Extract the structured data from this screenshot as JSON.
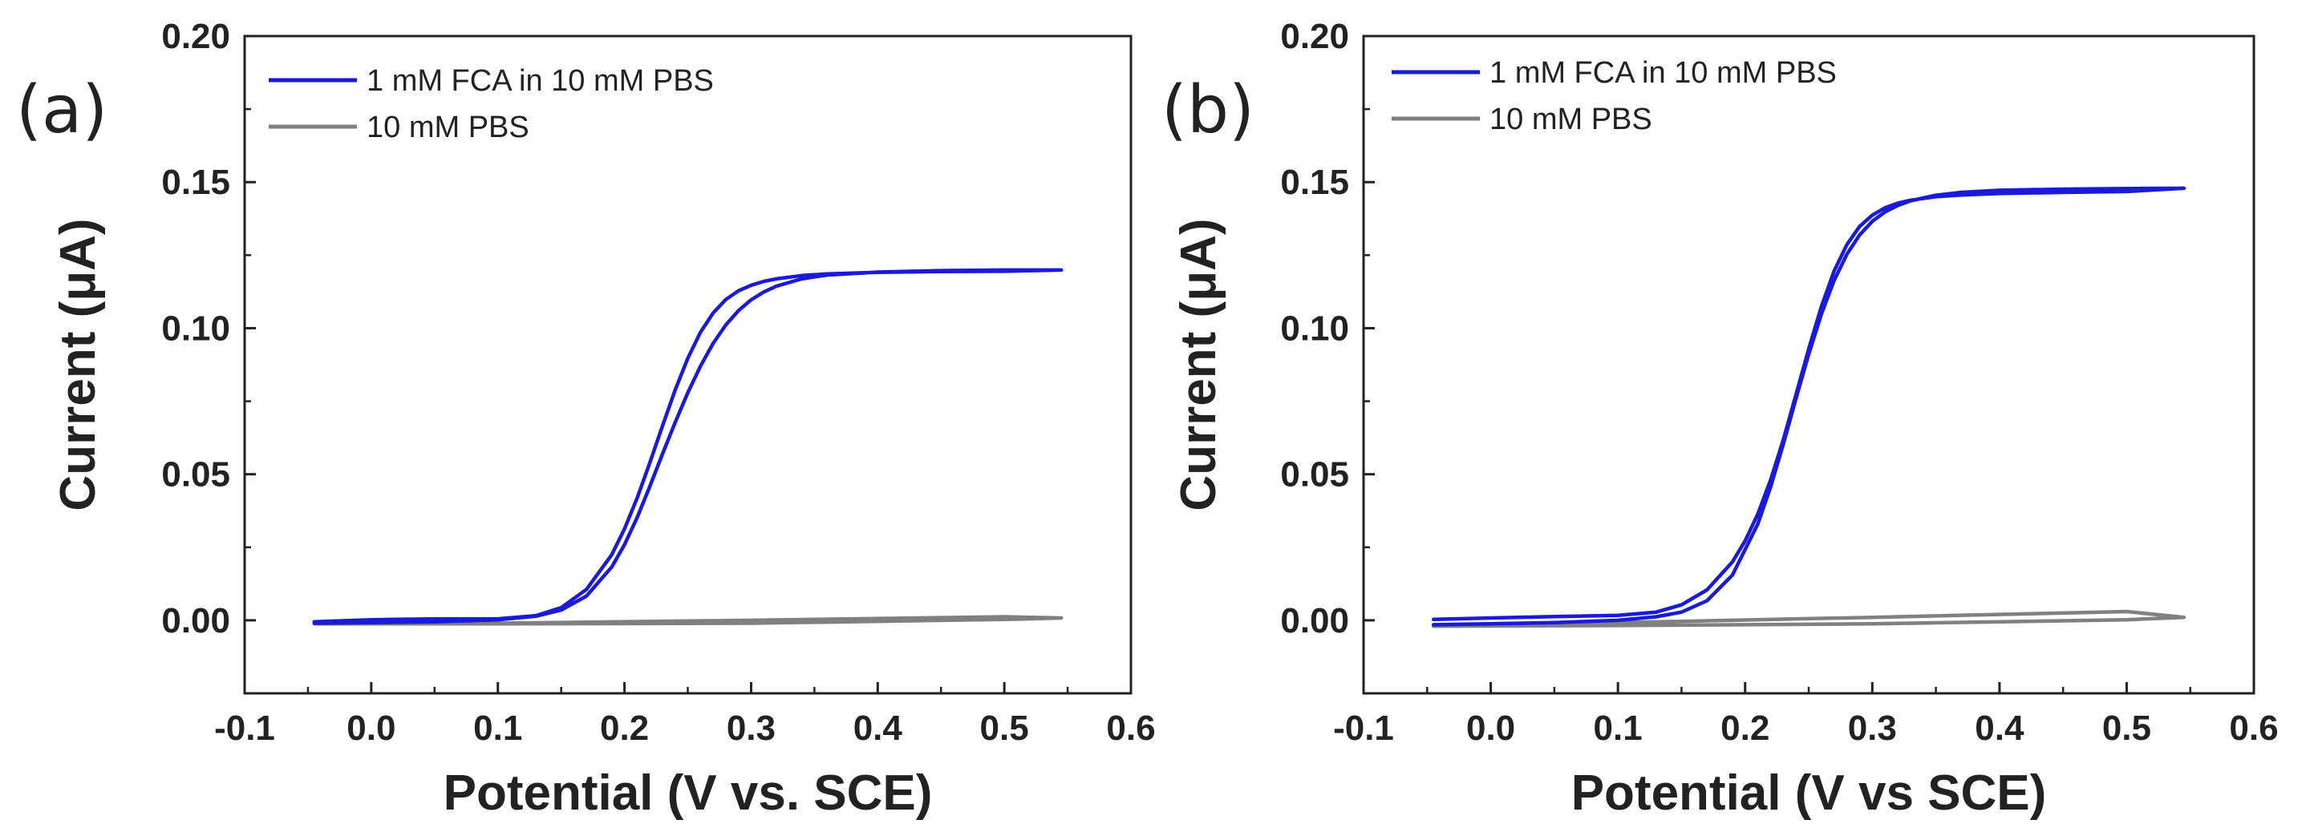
{
  "chart_data": [
    {
      "type": "line",
      "panel_label": "(a)",
      "xlabel": "Potential (V vs. SCE)",
      "ylabel": "Current (μA)",
      "xlim": [
        -0.1,
        0.6
      ],
      "ylim": [
        -0.025,
        0.2
      ],
      "xticks": [
        "-0.1",
        "0.0",
        "0.1",
        "0.2",
        "0.3",
        "0.4",
        "0.5",
        "0.6"
      ],
      "yticks": [
        "0.00",
        "0.05",
        "0.10",
        "0.15",
        "0.20"
      ],
      "grid": false,
      "legend_position": "top-left",
      "series": [
        {
          "name": "1 mM FCA in 10 mM PBS",
          "color": "#1a1adb",
          "x": [
            -0.045,
            0.0,
            0.05,
            0.1,
            0.13,
            0.15,
            0.17,
            0.19,
            0.2,
            0.21,
            0.22,
            0.23,
            0.24,
            0.25,
            0.26,
            0.27,
            0.28,
            0.29,
            0.3,
            0.31,
            0.32,
            0.34,
            0.36,
            0.4,
            0.45,
            0.5,
            0.545,
            0.5,
            0.45,
            0.4,
            0.36,
            0.34,
            0.32,
            0.31,
            0.3,
            0.29,
            0.28,
            0.27,
            0.26,
            0.25,
            0.24,
            0.23,
            0.22,
            0.21,
            0.2,
            0.19,
            0.17,
            0.15,
            0.13,
            0.1,
            0.05,
            0.0,
            -0.045
          ],
          "y": [
            -0.001,
            -0.0008,
            -0.0005,
            0.0002,
            0.0014,
            0.0035,
            0.0083,
            0.0183,
            0.0259,
            0.0352,
            0.0458,
            0.0569,
            0.0677,
            0.0779,
            0.087,
            0.0948,
            0.1011,
            0.106,
            0.1097,
            0.1124,
            0.1144,
            0.1169,
            0.1182,
            0.1192,
            0.1197,
            0.1199,
            0.1199,
            0.1195,
            0.1194,
            0.1191,
            0.1186,
            0.118,
            0.1169,
            0.116,
            0.1147,
            0.1128,
            0.1098,
            0.1052,
            0.0986,
            0.0897,
            0.0788,
            0.0665,
            0.0539,
            0.0419,
            0.0313,
            0.0225,
            0.0106,
            0.0043,
            0.0016,
            0.0005,
            0.0005,
            0.0002,
            -0.0005
          ]
        },
        {
          "name": "10 mM PBS",
          "color": "#808080",
          "x": [
            -0.045,
            0.1,
            0.3,
            0.5,
            0.545,
            0.5,
            0.3,
            0.1,
            -0.045
          ],
          "y": [
            -0.0012,
            -0.0012,
            -0.001,
            0.0003,
            0.0008,
            0.0012,
            0.0,
            -0.001,
            -0.0012
          ]
        }
      ]
    },
    {
      "type": "line",
      "panel_label": "(b)",
      "xlabel": "Potential (V vs SCE)",
      "ylabel": "Current (μA)",
      "xlim": [
        -0.1,
        0.6
      ],
      "ylim": [
        -0.025,
        0.2
      ],
      "xticks": [
        "-0.1",
        "0.0",
        "0.1",
        "0.2",
        "0.3",
        "0.4",
        "0.5",
        "0.6"
      ],
      "yticks": [
        "0.00",
        "0.05",
        "0.10",
        "0.15",
        "0.20"
      ],
      "grid": false,
      "legend_position": "top-left",
      "series": [
        {
          "name": "1 mM FCA in 10 mM PBS",
          "color": "#1a1adb",
          "x": [
            -0.045,
            0.0,
            0.05,
            0.1,
            0.13,
            0.15,
            0.17,
            0.19,
            0.21,
            0.22,
            0.23,
            0.24,
            0.25,
            0.26,
            0.27,
            0.28,
            0.29,
            0.3,
            0.31,
            0.32,
            0.33,
            0.35,
            0.37,
            0.4,
            0.45,
            0.5,
            0.545,
            0.5,
            0.45,
            0.4,
            0.37,
            0.35,
            0.33,
            0.32,
            0.31,
            0.3,
            0.29,
            0.28,
            0.27,
            0.26,
            0.25,
            0.24,
            0.23,
            0.22,
            0.21,
            0.2,
            0.19,
            0.17,
            0.15,
            0.13,
            0.1,
            0.05,
            0.0,
            -0.045
          ],
          "y": [
            -0.0015,
            -0.0012,
            -0.0008,
            0.0,
            0.0012,
            0.0028,
            0.0067,
            0.0155,
            0.033,
            0.0456,
            0.0603,
            0.0759,
            0.0911,
            0.1049,
            0.1164,
            0.1253,
            0.1319,
            0.1366,
            0.1398,
            0.142,
            0.1436,
            0.1455,
            0.1465,
            0.1472,
            0.1476,
            0.1478,
            0.1479,
            0.1468,
            0.1465,
            0.1461,
            0.1456,
            0.145,
            0.1438,
            0.1428,
            0.1412,
            0.1387,
            0.1348,
            0.1286,
            0.1196,
            0.1075,
            0.0929,
            0.0772,
            0.0618,
            0.048,
            0.0364,
            0.0272,
            0.02,
            0.0104,
            0.0053,
            0.0028,
            0.0017,
            0.0013,
            0.0008,
            0.0003
          ]
        },
        {
          "name": "10 mM PBS",
          "color": "#808080",
          "x": [
            -0.045,
            0.1,
            0.3,
            0.5,
            0.545,
            0.5,
            0.3,
            0.1,
            -0.045
          ],
          "y": [
            -0.002,
            -0.0018,
            -0.0012,
            0.0002,
            0.001,
            0.003,
            0.001,
            -0.0008,
            -0.002
          ]
        }
      ]
    }
  ]
}
